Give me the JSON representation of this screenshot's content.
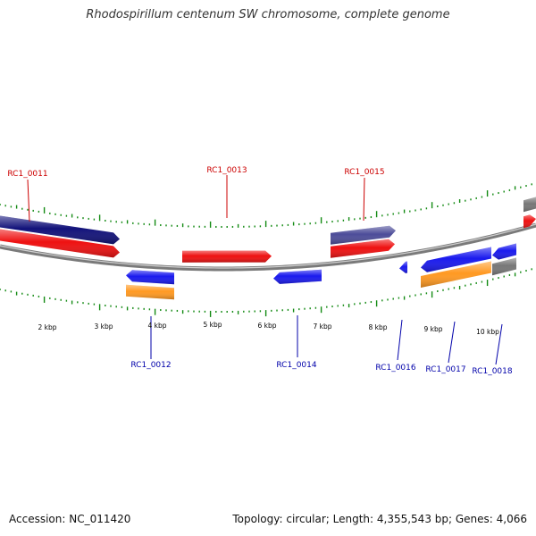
{
  "title": "Rhodospirillum centenum SW chromosome, complete genome",
  "footer": {
    "accession": "Accession: NC_011420",
    "summary": "Topology: circular; Length: 4,355,543 bp; Genes: 4,066"
  },
  "colors": {
    "forward_label": "#cc0000",
    "reverse_label": "#0000aa",
    "tick": "#138a13",
    "backbone": "#888888",
    "red": "#ee1111",
    "blue": "#1a1aee",
    "navy": "#12127a",
    "slate": "#4d4d99",
    "orange": "#ff9922",
    "gray": "#777777"
  },
  "scale_labels": [
    "2 kbp",
    "3 kbp",
    "4 kbp",
    "5 kbp",
    "6 kbp",
    "7 kbp",
    "8 kbp",
    "9 kbp",
    "10 kbp"
  ],
  "gene_labels": [
    {
      "text": "RC1_0011",
      "strand": "forward"
    },
    {
      "text": "RC1_0013",
      "strand": "forward"
    },
    {
      "text": "RC1_0015",
      "strand": "forward"
    },
    {
      "text": "RC1_0012",
      "strand": "reverse"
    },
    {
      "text": "RC1_0014",
      "strand": "reverse"
    },
    {
      "text": "RC1_0016",
      "strand": "reverse"
    },
    {
      "text": "RC1_0017",
      "strand": "reverse"
    },
    {
      "text": "RC1_0018",
      "strand": "reverse"
    }
  ]
}
